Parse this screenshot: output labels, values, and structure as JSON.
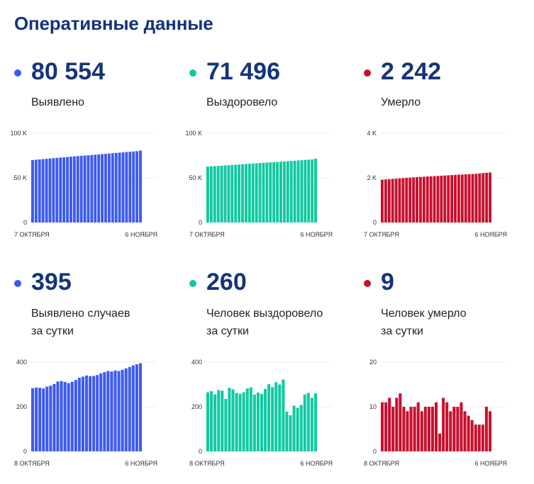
{
  "page_title": "Оперативные данные",
  "cards": [
    {
      "value": "80 554",
      "label_lines": [
        "Выявлено"
      ],
      "color": "#3d5af1",
      "chart_data": {
        "type": "bar",
        "x_start_label": "7 ОКТЯБРЯ",
        "x_end_label": "6 НОЯБРЯ",
        "yticks": [
          "100 K",
          "50 K",
          "0"
        ],
        "ytick_values": [
          100000,
          50000,
          0
        ],
        "ylim": [
          0,
          100000
        ],
        "values": [
          69900,
          70280,
          70650,
          71010,
          71360,
          71700,
          72040,
          72380,
          72720,
          73060,
          73400,
          73730,
          74060,
          74380,
          74700,
          75010,
          75320,
          75630,
          75950,
          76280,
          76620,
          76950,
          77290,
          77620,
          77940,
          78280,
          78610,
          78940,
          79270,
          79590,
          79900,
          80554
        ]
      }
    },
    {
      "value": "71 496",
      "label_lines": [
        "Выздоровело"
      ],
      "color": "#10c9a2",
      "chart_data": {
        "type": "bar",
        "x_start_label": "7 ОКТЯБРЯ",
        "x_end_label": "6 НОЯБРЯ",
        "yticks": [
          "100 K",
          "50 K",
          "0"
        ],
        "ytick_values": [
          100000,
          50000,
          0
        ],
        "ylim": [
          0,
          100000
        ],
        "values": [
          62700,
          62950,
          63200,
          63450,
          63700,
          63950,
          64200,
          64460,
          64730,
          64990,
          65250,
          65520,
          65780,
          66050,
          66320,
          66600,
          66880,
          67150,
          67400,
          67650,
          67900,
          68150,
          68400,
          68650,
          68920,
          69220,
          69510,
          69800,
          70110,
          70400,
          70680,
          71496
        ]
      }
    },
    {
      "value": "2 242",
      "label_lines": [
        "Умерло"
      ],
      "color": "#c8102e",
      "chart_data": {
        "type": "bar",
        "x_start_label": "7 ОКТЯБРЯ",
        "x_end_label": "6 НОЯБРЯ",
        "yticks": [
          "4 K",
          "2 K",
          "0"
        ],
        "ytick_values": [
          4000,
          2000,
          0
        ],
        "ylim": [
          0,
          4000
        ],
        "values": [
          1920,
          1931,
          1942,
          1954,
          1966,
          1979,
          1991,
          2002,
          2012,
          2022,
          2031,
          2041,
          2050,
          2060,
          2069,
          2079,
          2088,
          2098,
          2107,
          2116,
          2125,
          2134,
          2142,
          2150,
          2158,
          2166,
          2174,
          2182,
          2199,
          2213,
          2227,
          2242
        ]
      }
    },
    {
      "value": "395",
      "label_lines": [
        "Выявлено случаев",
        "за сутки"
      ],
      "color": "#3d5af1",
      "chart_data": {
        "type": "bar",
        "x_start_label": "8 ОКТЯБРЯ",
        "x_end_label": "6 НОЯБРЯ",
        "yticks": [
          "400",
          "200",
          "0"
        ],
        "ytick_values": [
          400,
          200,
          0
        ],
        "ylim": [
          0,
          400
        ],
        "values": [
          283,
          286,
          285,
          282,
          290,
          294,
          302,
          313,
          315,
          311,
          306,
          312,
          320,
          330,
          335,
          340,
          337,
          338,
          342,
          350,
          355,
          360,
          358,
          362,
          360,
          365,
          372,
          378,
          385,
          390,
          395
        ]
      }
    },
    {
      "value": "260",
      "label_lines": [
        "Человек выздоровело",
        "за сутки"
      ],
      "color": "#10c9a2",
      "chart_data": {
        "type": "bar",
        "x_start_label": "8 ОКТЯБРЯ",
        "x_end_label": "6 НОЯБРЯ",
        "yticks": [
          "400",
          "200",
          "0"
        ],
        "ytick_values": [
          400,
          200,
          0
        ],
        "ylim": [
          0,
          400
        ],
        "values": [
          265,
          270,
          255,
          275,
          272,
          235,
          285,
          278,
          262,
          258,
          265,
          282,
          287,
          254,
          264,
          258,
          280,
          301,
          288,
          310,
          300,
          322,
          178,
          162,
          205,
          195,
          208,
          255,
          262,
          240,
          260
        ]
      }
    },
    {
      "value": "9",
      "label_lines": [
        "Человек умерло",
        "за сутки"
      ],
      "color": "#c8102e",
      "chart_data": {
        "type": "bar",
        "x_start_label": "8 ОКТЯБРЯ",
        "x_end_label": "6 НОЯБРЯ",
        "yticks": [
          "20",
          "10",
          "0"
        ],
        "ytick_values": [
          20,
          10,
          0
        ],
        "ylim": [
          0,
          20
        ],
        "values": [
          11,
          11,
          12,
          10,
          12,
          13,
          10,
          9,
          10,
          10,
          11,
          9,
          10,
          10,
          10,
          11,
          4,
          12,
          11,
          9,
          10,
          10,
          11,
          9,
          8,
          7,
          6,
          6,
          6,
          10,
          9
        ]
      }
    }
  ]
}
